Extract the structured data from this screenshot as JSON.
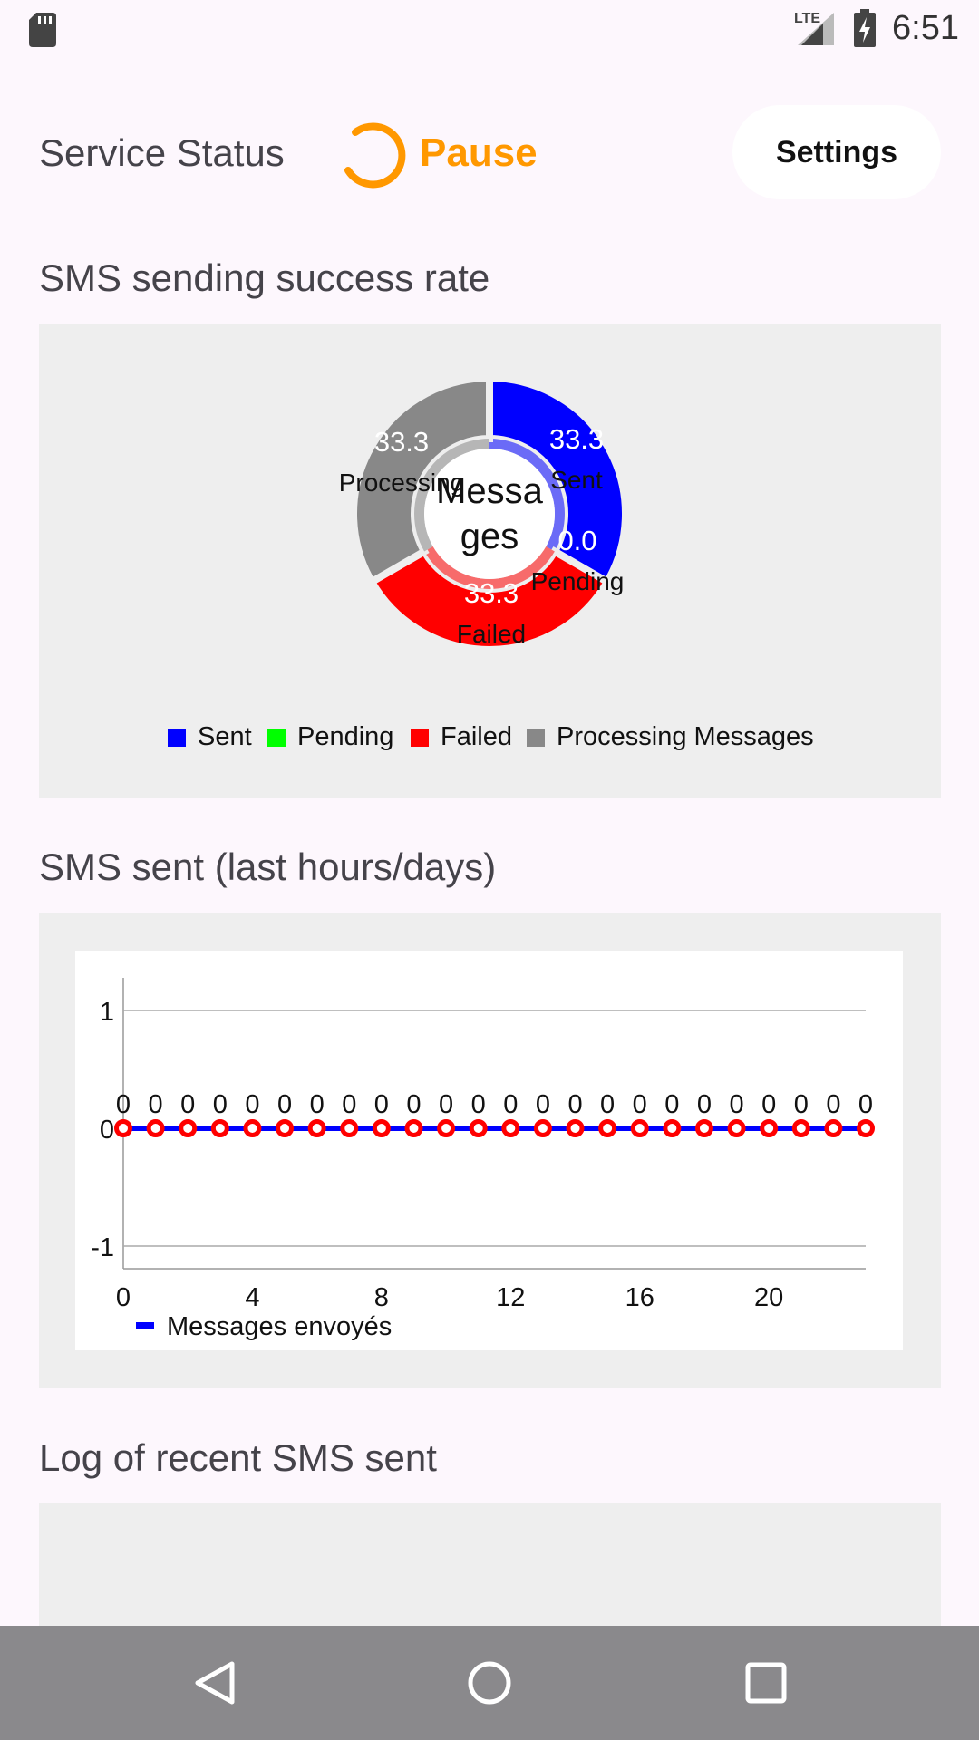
{
  "status_bar": {
    "time": "6:51",
    "network": "LTE",
    "icons": [
      "sd-card-icon",
      "signal-icon",
      "battery-charging-icon"
    ]
  },
  "header": {
    "title": "Service Status",
    "state": "Pause",
    "state_color": "#FF9800",
    "settings_label": "Settings"
  },
  "sections": {
    "success_rate_title": "SMS sending success rate",
    "sent_title": "SMS sent (last hours/days)",
    "log_title": "Log of recent SMS sent"
  },
  "chart_data": [
    {
      "type": "pie",
      "center_text": [
        "Messa",
        "ges"
      ],
      "categories": [
        "Sent",
        "Pending",
        "Failed",
        "Processing"
      ],
      "values": [
        33.3,
        0.0,
        33.3,
        33.3
      ],
      "value_labels": [
        "33.3",
        "0.0",
        "33.3",
        "33.3"
      ],
      "colors": [
        "#0000FF",
        "#00FF00",
        "#FF0000",
        "#888888"
      ],
      "legend": [
        "Sent",
        "Pending",
        "Failed",
        "Processing Messages"
      ],
      "legend_placement": "bottom"
    },
    {
      "type": "line",
      "x": [
        0,
        1,
        2,
        3,
        4,
        5,
        6,
        7,
        8,
        9,
        10,
        11,
        12,
        13,
        14,
        15,
        16,
        17,
        18,
        19,
        20,
        21,
        22,
        23
      ],
      "series": [
        {
          "name": "Messages envoyés",
          "values": [
            0,
            0,
            0,
            0,
            0,
            0,
            0,
            0,
            0,
            0,
            0,
            0,
            0,
            0,
            0,
            0,
            0,
            0,
            0,
            0,
            0,
            0,
            0,
            0
          ],
          "color": "#0000FF",
          "marker_color": "#FF0000"
        }
      ],
      "x_ticks": [
        "0",
        "4",
        "8",
        "12",
        "16",
        "20"
      ],
      "y_ticks": [
        "1",
        "0",
        "-1"
      ],
      "ylim": [
        -1,
        1
      ],
      "grid": true,
      "legend_placement": "bottom-left"
    }
  ]
}
